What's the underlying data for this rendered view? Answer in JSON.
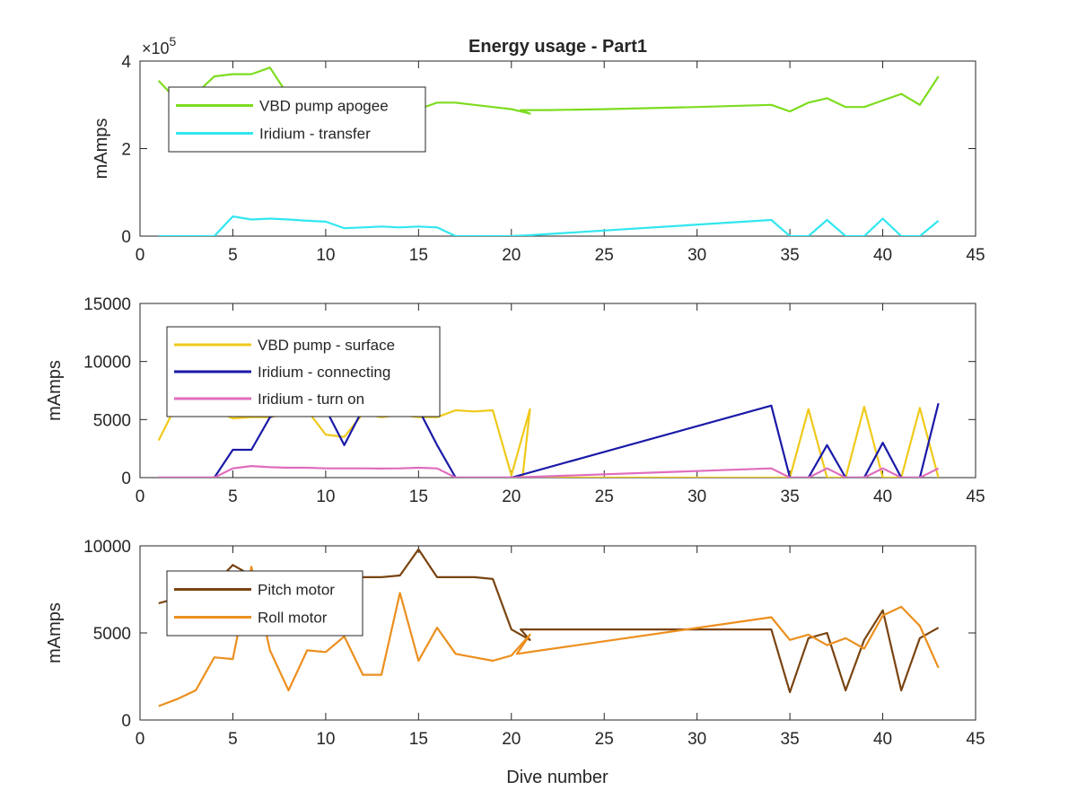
{
  "figure": {
    "xlabel": "Dive number"
  },
  "chart_data": [
    {
      "type": "line",
      "title": "Energy usage - Part1",
      "ylabel": "mAmps",
      "exponent_base": "×10",
      "exponent_power": "5",
      "xlim": [
        0,
        45
      ],
      "ylim": [
        0,
        4
      ],
      "xticks": [
        "0",
        "5",
        "10",
        "15",
        "20",
        "25",
        "30",
        "35",
        "40",
        "45"
      ],
      "yticks": [
        "0",
        "2",
        "4"
      ],
      "ytick_values": [
        0,
        2,
        4
      ],
      "legend_position": "top-left",
      "series": [
        {
          "name": "VBD pump apogee",
          "color": "#7ddc1f",
          "points": [
            [
              1,
              3.55
            ],
            [
              2,
              3.1
            ],
            [
              3,
              3.25
            ],
            [
              4,
              3.65
            ],
            [
              5,
              3.7
            ],
            [
              6,
              3.7
            ],
            [
              7,
              3.85
            ],
            [
              8,
              3.2
            ],
            [
              9,
              3.1
            ],
            [
              10,
              3.05
            ],
            [
              11,
              3.0
            ],
            [
              12,
              2.95
            ],
            [
              13,
              2.9
            ],
            [
              14,
              2.85
            ],
            [
              15,
              2.9
            ],
            [
              16,
              3.05
            ],
            [
              17,
              3.05
            ],
            [
              18,
              3.0
            ],
            [
              19,
              2.95
            ],
            [
              20,
              2.9
            ],
            [
              21,
              2.8
            ],
            [
              20.5,
              2.88
            ],
            [
              22,
              2.88
            ],
            [
              25,
              2.9
            ],
            [
              30,
              2.95
            ],
            [
              34,
              3.0
            ],
            [
              35,
              2.85
            ],
            [
              36,
              3.05
            ],
            [
              37,
              3.15
            ],
            [
              38,
              2.95
            ],
            [
              39,
              2.95
            ],
            [
              40,
              3.1
            ],
            [
              41,
              3.25
            ],
            [
              42,
              3.0
            ],
            [
              43,
              3.65
            ]
          ]
        },
        {
          "name": "Iridium - transfer",
          "color": "#32e6f0",
          "points": [
            [
              1,
              0
            ],
            [
              2,
              0
            ],
            [
              3,
              0
            ],
            [
              4,
              0
            ],
            [
              5,
              0.45
            ],
            [
              6,
              0.38
            ],
            [
              7,
              0.4
            ],
            [
              8,
              0.38
            ],
            [
              9,
              0.35
            ],
            [
              10,
              0.33
            ],
            [
              11,
              0.18
            ],
            [
              12,
              0.2
            ],
            [
              13,
              0.22
            ],
            [
              14,
              0.2
            ],
            [
              15,
              0.22
            ],
            [
              16,
              0.2
            ],
            [
              17,
              0
            ],
            [
              18,
              0
            ],
            [
              19,
              0
            ],
            [
              20,
              0
            ],
            [
              21,
              0.02
            ],
            [
              34,
              0.37
            ],
            [
              35,
              0
            ],
            [
              36,
              0
            ],
            [
              37,
              0.37
            ],
            [
              38,
              0
            ],
            [
              39,
              0
            ],
            [
              40,
              0.4
            ],
            [
              41,
              0
            ],
            [
              42,
              0
            ],
            [
              43,
              0.35
            ]
          ]
        }
      ]
    },
    {
      "type": "line",
      "title": "",
      "ylabel": "mAmps",
      "xlim": [
        0,
        45
      ],
      "ylim": [
        0,
        15000
      ],
      "xticks": [
        "0",
        "5",
        "10",
        "15",
        "20",
        "25",
        "30",
        "35",
        "40",
        "45"
      ],
      "yticks": [
        "0",
        "5000",
        "10000",
        "15000"
      ],
      "ytick_values": [
        0,
        5000,
        10000,
        15000
      ],
      "legend_position": "top-left",
      "series": [
        {
          "name": "VBD pump - surface",
          "color": "#f0c91a",
          "points": [
            [
              1,
              3200
            ],
            [
              2,
              6400
            ],
            [
              3,
              6000
            ],
            [
              4,
              5800
            ],
            [
              5,
              5100
            ],
            [
              6,
              5200
            ],
            [
              7,
              5200
            ],
            [
              8,
              5500
            ],
            [
              9,
              5800
            ],
            [
              10,
              3700
            ],
            [
              11,
              3500
            ],
            [
              12,
              5500
            ],
            [
              13,
              5200
            ],
            [
              14,
              5400
            ],
            [
              15,
              5200
            ],
            [
              16,
              5200
            ],
            [
              17,
              5800
            ],
            [
              18,
              5700
            ],
            [
              19,
              5800
            ],
            [
              20,
              200
            ],
            [
              21,
              5900
            ],
            [
              20.6,
              0
            ],
            [
              34,
              0
            ],
            [
              35,
              0
            ],
            [
              36,
              5900
            ],
            [
              37,
              0
            ],
            [
              38,
              0
            ],
            [
              39,
              6100
            ],
            [
              40,
              0
            ],
            [
              41,
              0
            ],
            [
              42,
              6000
            ],
            [
              43,
              0
            ]
          ]
        },
        {
          "name": "Iridium - connecting",
          "color": "#1a1aa8",
          "points": [
            [
              1,
              0
            ],
            [
              2,
              0
            ],
            [
              3,
              0
            ],
            [
              4,
              0
            ],
            [
              5,
              2400
            ],
            [
              6,
              2400
            ],
            [
              7,
              5200
            ],
            [
              8,
              5800
            ],
            [
              9,
              5900
            ],
            [
              10,
              5900
            ],
            [
              11,
              2800
            ],
            [
              12,
              5900
            ],
            [
              13,
              5900
            ],
            [
              14,
              5900
            ],
            [
              15,
              5900
            ],
            [
              16,
              2800
            ],
            [
              17,
              0
            ],
            [
              18,
              0
            ],
            [
              19,
              0
            ],
            [
              20,
              0
            ],
            [
              34,
              6200
            ],
            [
              35,
              0
            ],
            [
              36,
              0
            ],
            [
              37,
              2800
            ],
            [
              38,
              0
            ],
            [
              39,
              0
            ],
            [
              40,
              3000
            ],
            [
              41,
              0
            ],
            [
              42,
              0
            ],
            [
              43,
              6400
            ]
          ]
        },
        {
          "name": "Iridium - turn on",
          "color": "#e06cbd",
          "points": [
            [
              1,
              0
            ],
            [
              2,
              0
            ],
            [
              3,
              0
            ],
            [
              4,
              0
            ],
            [
              5,
              800
            ],
            [
              6,
              1000
            ],
            [
              7,
              900
            ],
            [
              8,
              850
            ],
            [
              9,
              850
            ],
            [
              10,
              800
            ],
            [
              11,
              800
            ],
            [
              12,
              800
            ],
            [
              13,
              780
            ],
            [
              14,
              800
            ],
            [
              15,
              850
            ],
            [
              16,
              800
            ],
            [
              17,
              0
            ],
            [
              18,
              0
            ],
            [
              19,
              0
            ],
            [
              20,
              0
            ],
            [
              34,
              800
            ],
            [
              35,
              0
            ],
            [
              36,
              0
            ],
            [
              37,
              800
            ],
            [
              38,
              0
            ],
            [
              39,
              0
            ],
            [
              40,
              800
            ],
            [
              41,
              0
            ],
            [
              42,
              0
            ],
            [
              43,
              800
            ]
          ]
        }
      ]
    },
    {
      "type": "line",
      "title": "",
      "ylabel": "mAmps",
      "xlim": [
        0,
        45
      ],
      "ylim": [
        0,
        10000
      ],
      "xticks": [
        "0",
        "5",
        "10",
        "15",
        "20",
        "25",
        "30",
        "35",
        "40",
        "45"
      ],
      "yticks": [
        "0",
        "5000",
        "10000"
      ],
      "ytick_values": [
        0,
        5000,
        10000
      ],
      "legend_position": "top-left",
      "series": [
        {
          "name": "Pitch motor",
          "color": "#7a4410",
          "points": [
            [
              1,
              6700
            ],
            [
              2,
              7000
            ],
            [
              3,
              7200
            ],
            [
              4,
              7800
            ],
            [
              5,
              8900
            ],
            [
              6,
              8300
            ],
            [
              7,
              8100
            ],
            [
              8,
              8100
            ],
            [
              9,
              8100
            ],
            [
              10,
              8200
            ],
            [
              11,
              8200
            ],
            [
              12,
              8200
            ],
            [
              13,
              8200
            ],
            [
              14,
              8300
            ],
            [
              15,
              9800
            ],
            [
              16,
              8200
            ],
            [
              17,
              8200
            ],
            [
              18,
              8200
            ],
            [
              19,
              8100
            ],
            [
              20,
              5200
            ],
            [
              21,
              4600
            ],
            [
              20.5,
              5200
            ],
            [
              34,
              5200
            ],
            [
              35,
              1600
            ],
            [
              36,
              4700
            ],
            [
              37,
              5000
            ],
            [
              38,
              1700
            ],
            [
              39,
              4600
            ],
            [
              40,
              6300
            ],
            [
              41,
              1700
            ],
            [
              42,
              4700
            ],
            [
              43,
              5300
            ]
          ]
        },
        {
          "name": "Roll motor",
          "color": "#ec8f1e",
          "points": [
            [
              1,
              800
            ],
            [
              2,
              1200
            ],
            [
              3,
              1700
            ],
            [
              4,
              3600
            ],
            [
              5,
              3500
            ],
            [
              6,
              8800
            ],
            [
              7,
              4000
            ],
            [
              8,
              1700
            ],
            [
              9,
              4000
            ],
            [
              10,
              3900
            ],
            [
              11,
              4800
            ],
            [
              12,
              2600
            ],
            [
              13,
              2600
            ],
            [
              14,
              7300
            ],
            [
              15,
              3400
            ],
            [
              16,
              5300
            ],
            [
              17,
              3800
            ],
            [
              18,
              3600
            ],
            [
              19,
              3400
            ],
            [
              20,
              3700
            ],
            [
              21,
              4900
            ],
            [
              20.3,
              3800
            ],
            [
              34,
              5900
            ],
            [
              35,
              4600
            ],
            [
              36,
              4900
            ],
            [
              37,
              4300
            ],
            [
              38,
              4700
            ],
            [
              39,
              4100
            ],
            [
              40,
              6000
            ],
            [
              41,
              6500
            ],
            [
              42,
              5400
            ],
            [
              43,
              3000
            ]
          ]
        }
      ]
    }
  ]
}
